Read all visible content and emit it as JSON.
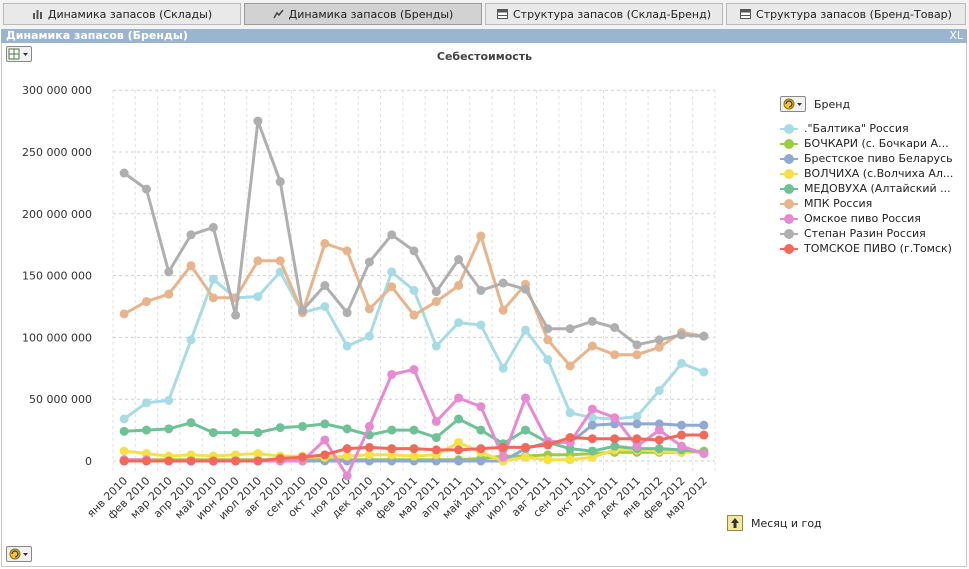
{
  "tabs": [
    {
      "label": "Динамика запасов (Склады)",
      "icon": "bar-chart-icon",
      "active": false
    },
    {
      "label": "Динамика запасов (Бренды)",
      "icon": "line-chart-icon",
      "active": true
    },
    {
      "label": "Структура запасов (Склад-Бренд)",
      "icon": "table-icon",
      "active": false
    },
    {
      "label": "Структура запасов (Бренд-Товар)",
      "icon": "table-icon",
      "active": false
    }
  ],
  "panel": {
    "title": "Динамика запасов (Бренды)",
    "export_label": "XL"
  },
  "legend_title": "Бренд",
  "x_axis_title": "Месяц и год",
  "chart_data": {
    "type": "line",
    "title": "Себестоимость",
    "xlabel": "Месяц и год",
    "ylabel": "",
    "ylim": [
      -10000000,
      300000000
    ],
    "yticks": [
      0,
      50000000,
      100000000,
      150000000,
      200000000,
      250000000,
      300000000
    ],
    "ytick_labels": [
      "0",
      "50 000 000",
      "100 000 000",
      "150 000 000",
      "200 000 000",
      "250 000 000",
      "300 000 000"
    ],
    "grid": true,
    "legend_position": "right",
    "categories": [
      "янв 2010",
      "фев 2010",
      "мар 2010",
      "апр 2010",
      "май 2010",
      "июн 2010",
      "июл 2010",
      "авг 2010",
      "сен 2010",
      "окт 2010",
      "ноя 2010",
      "дек 2010",
      "янв 2011",
      "фев 2011",
      "мар 2011",
      "апр 2011",
      "май 2011",
      "июн 2011",
      "июл 2011",
      "авг 2011",
      "сен 2011",
      "окт 2011",
      "ноя 2011",
      "дек 2011",
      "янв 2012",
      "фев 2012",
      "мар 2012"
    ],
    "series": [
      {
        "name": ".\"Балтика\" Россия",
        "color": "#a8dce4",
        "values": [
          34000000,
          47000000,
          49000000,
          98000000,
          147000000,
          132000000,
          133000000,
          153000000,
          120000000,
          125000000,
          93000000,
          101000000,
          153000000,
          138000000,
          93000000,
          112000000,
          110000000,
          75000000,
          106000000,
          82000000,
          39000000,
          35000000,
          34000000,
          36000000,
          57000000,
          79000000,
          72000000
        ]
      },
      {
        "name": "БОЧКАРИ (с. Бочкари А...",
        "color": "#9acd44",
        "values": [
          1000000,
          1000000,
          1000000,
          1000000,
          1000000,
          1000000,
          1000000,
          1000000,
          1000000,
          1000000,
          1000000,
          1000000,
          1000000,
          1000000,
          1000000,
          1000000,
          2000000,
          4000000,
          4000000,
          5000000,
          5000000,
          6000000,
          7000000,
          7000000,
          7000000,
          7000000,
          8000000
        ]
      },
      {
        "name": "Брестское пиво Беларусь",
        "color": "#8fa9d2",
        "values": [
          0,
          0,
          0,
          0,
          0,
          0,
          0,
          0,
          0,
          0,
          0,
          0,
          0,
          0,
          0,
          0,
          0,
          0,
          10000000,
          15000000,
          15000000,
          29000000,
          30000000,
          30000000,
          30000000,
          29000000,
          29000000
        ]
      },
      {
        "name": "ВОЛЧИХА (с.Волчиха Ал...",
        "color": "#f5e04a",
        "values": [
          8000000,
          6000000,
          4000000,
          5000000,
          4000000,
          5000000,
          6000000,
          4000000,
          4000000,
          3000000,
          4000000,
          5000000,
          5000000,
          4000000,
          5000000,
          15000000,
          7000000,
          0,
          3000000,
          1000000,
          1000000,
          3000000,
          9000000,
          9000000,
          8000000,
          7000000,
          7000000
        ]
      },
      {
        "name": "МЕДОВУХА (Алтайский ...",
        "color": "#6fc295",
        "values": [
          24000000,
          25000000,
          26000000,
          31000000,
          23000000,
          23000000,
          23000000,
          27000000,
          28000000,
          30000000,
          26000000,
          21000000,
          25000000,
          25000000,
          19000000,
          34000000,
          25000000,
          14000000,
          25000000,
          15000000,
          10000000,
          8000000,
          12000000,
          10000000,
          10000000,
          9000000,
          7000000
        ]
      },
      {
        "name": "МПК Россия",
        "color": "#e8b48c",
        "values": [
          119000000,
          129000000,
          135000000,
          158000000,
          132000000,
          132000000,
          162000000,
          162000000,
          120000000,
          176000000,
          170000000,
          123000000,
          141000000,
          118000000,
          129000000,
          142000000,
          182000000,
          122000000,
          143000000,
          98000000,
          77000000,
          93000000,
          86000000,
          86000000,
          92000000,
          104000000,
          101000000
        ]
      },
      {
        "name": "Омское пиво  Россия",
        "color": "#e68ad4",
        "values": [
          1000000,
          1000000,
          0,
          0,
          0,
          0,
          0,
          0,
          0,
          17000000,
          -12000000,
          28000000,
          70000000,
          74000000,
          32000000,
          51000000,
          44000000,
          3000000,
          51000000,
          16000000,
          15000000,
          42000000,
          35000000,
          12000000,
          25000000,
          12000000,
          6000000
        ]
      },
      {
        "name": "Степан Разин Россия",
        "color": "#afafaf",
        "values": [
          233000000,
          220000000,
          153000000,
          183000000,
          189000000,
          118000000,
          275000000,
          226000000,
          122000000,
          142000000,
          120000000,
          161000000,
          183000000,
          170000000,
          137000000,
          163000000,
          138000000,
          144000000,
          139000000,
          107000000,
          107000000,
          113000000,
          108000000,
          94000000,
          98000000,
          102000000,
          101000000
        ]
      },
      {
        "name": "ТОМСКОЕ ПИВО (г.Томск)",
        "color": "#f2685a",
        "values": [
          0,
          0,
          0,
          0,
          0,
          0,
          0,
          2000000,
          3000000,
          5000000,
          10000000,
          11000000,
          10000000,
          10000000,
          9000000,
          9000000,
          10000000,
          11000000,
          11000000,
          13000000,
          19000000,
          18000000,
          18000000,
          18000000,
          17000000,
          21000000,
          21000000
        ]
      }
    ]
  }
}
